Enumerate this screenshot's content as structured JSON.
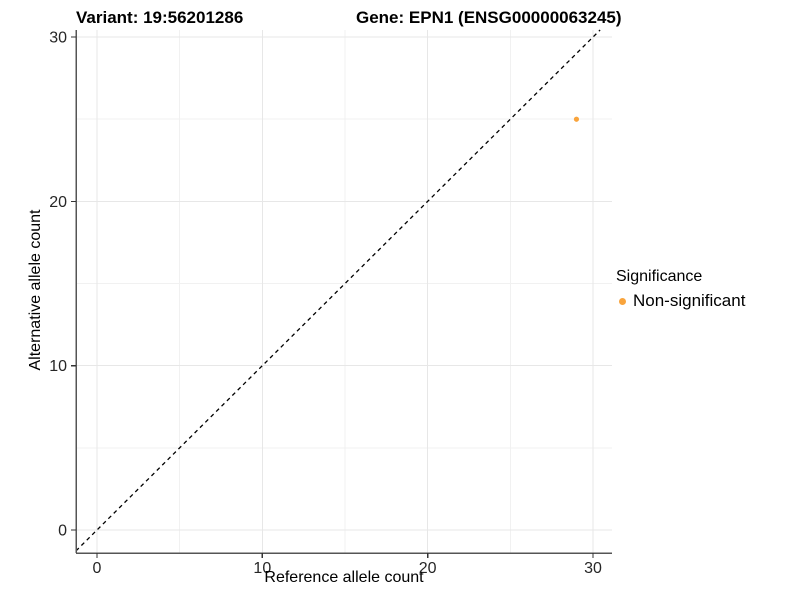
{
  "header": {
    "variant_title": "Variant: 19:56201286",
    "gene_title": "Gene: EPN1 (ENSG00000063245)"
  },
  "chart_data": {
    "type": "scatter",
    "xlabel": "Reference allele count",
    "ylabel": "Alternative allele count",
    "xlim": [
      -1.27,
      31.15
    ],
    "ylim": [
      -1.4,
      30.43
    ],
    "x_ticks": [
      0,
      10,
      20,
      30
    ],
    "y_ticks": [
      0,
      10,
      20,
      30
    ],
    "x_minor_ticks": [
      5,
      15,
      25
    ],
    "y_minor_ticks": [
      5,
      15,
      25
    ],
    "grid": true,
    "legend_position": "right",
    "series": [
      {
        "name": "Non-significant",
        "color": "#F9A43C",
        "points": [
          {
            "x": 29,
            "y": 25
          }
        ]
      }
    ],
    "reference_line": {
      "kind": "identity",
      "slope": 1,
      "intercept": 0,
      "linetype": "dashed",
      "color": "#000000"
    },
    "legend": {
      "title": "Significance",
      "items": [
        {
          "label": "Non-significant",
          "color": "#F9A43C",
          "marker": "circle"
        }
      ]
    }
  },
  "colors": {
    "background": "#FFFFFF",
    "grid_major": "#E7E7E7",
    "grid_minor": "#F1F1F1",
    "axis_line": "#555555",
    "tick_mark": "#333333",
    "tick_label": "#262626",
    "point": "#F9A43C"
  }
}
